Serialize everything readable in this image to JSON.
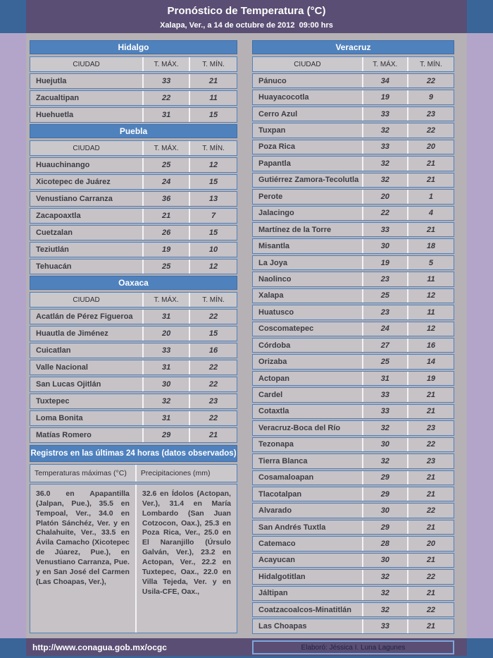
{
  "header": {
    "title": "Pronóstico de Temperatura (°C)",
    "subtitle": "Xalapa, Ver., a 14 de octubre de 2012  09:00 hrs"
  },
  "columns": {
    "ciudad": "CIUDAD",
    "tmax": "T. MÁX.",
    "tmin": "T. MÍN."
  },
  "states": [
    {
      "id": "hidalgo",
      "name": "Hidalgo",
      "rows": [
        [
          "Huejutla",
          33,
          21
        ],
        [
          "Zacualtipan",
          22,
          11
        ],
        [
          "Huehuetla",
          31,
          15
        ]
      ]
    },
    {
      "id": "puebla",
      "name": "Puebla",
      "rows": [
        [
          "Huauchinango",
          25,
          12
        ],
        [
          "Xicotepec de Juárez",
          24,
          15
        ],
        [
          "Venustiano Carranza",
          36,
          13
        ],
        [
          "Zacapoaxtla",
          21,
          7
        ],
        [
          "Cuetzalan",
          26,
          15
        ],
        [
          "Teziutlán",
          19,
          10
        ],
        [
          "Tehuacán",
          25,
          12
        ]
      ]
    },
    {
      "id": "oaxaca",
      "name": "Oaxaca",
      "rows": [
        [
          "Acatlán de Pérez Figueroa",
          31,
          22
        ],
        [
          "Huautla de Jiménez",
          20,
          15
        ],
        [
          "Cuicatlan",
          33,
          16
        ],
        [
          "Valle Nacional",
          31,
          22
        ],
        [
          "San Lucas Ojitlán",
          30,
          22
        ],
        [
          "Tuxtepec",
          32,
          23
        ],
        [
          "Loma Bonita",
          31,
          22
        ],
        [
          "Matías Romero",
          29,
          21
        ]
      ]
    },
    {
      "id": "veracruz",
      "name": "Veracruz",
      "rows": [
        [
          "Pánuco",
          34,
          22
        ],
        [
          "Huayacocotla",
          19,
          9
        ],
        [
          "Cerro Azul",
          33,
          23
        ],
        [
          "Tuxpan",
          32,
          22
        ],
        [
          "Poza Rica",
          33,
          20
        ],
        [
          "Papantla",
          32,
          21
        ],
        [
          "Gutiérrez Zamora-Tecolutla",
          32,
          21
        ],
        [
          "Perote",
          20,
          1
        ],
        [
          "Jalacingo",
          22,
          4
        ],
        [
          "Martínez de la Torre",
          33,
          21
        ],
        [
          "Misantla",
          30,
          18
        ],
        [
          "La Joya",
          19,
          5
        ],
        [
          "Naolinco",
          23,
          11
        ],
        [
          "Xalapa",
          25,
          12
        ],
        [
          "Huatusco",
          23,
          11
        ],
        [
          "Coscomatepec",
          24,
          12
        ],
        [
          "Córdoba",
          27,
          16
        ],
        [
          "Orizaba",
          25,
          14
        ],
        [
          "Actopan",
          31,
          19
        ],
        [
          "Cardel",
          33,
          21
        ],
        [
          "Cotaxtla",
          33,
          21
        ],
        [
          "Veracruz-Boca del Río",
          32,
          23
        ],
        [
          "Tezonapa",
          30,
          22
        ],
        [
          "Tierra Blanca",
          32,
          23
        ],
        [
          "Cosamaloapan",
          29,
          21
        ],
        [
          "Tlacotalpan",
          29,
          21
        ],
        [
          "Alvarado",
          30,
          22
        ],
        [
          "San Andrés Tuxtla",
          29,
          21
        ],
        [
          "Catemaco",
          28,
          20
        ],
        [
          "Acayucan",
          30,
          21
        ],
        [
          "Hidalgotitlan",
          32,
          22
        ],
        [
          "Jáltipan",
          32,
          21
        ],
        [
          "Coatzacoalcos-Minatitlán",
          32,
          22
        ],
        [
          "Las Choapas",
          33,
          21
        ]
      ]
    }
  ],
  "registros": {
    "title": "Registros en las últimas 24 horas (datos observados)",
    "col1_header": "Temperaturas máximas (°C)",
    "col2_header": "Precipitaciones (mm)",
    "col1_text": "36.0 en Apapantilla (Jalpan, Pue.), 35.5 en Tempoal, Ver., 34.0 en Platón Sánchéz, Ver. y en Chalahuite, Ver., 33.5 en Ávila Camacho (Xicotepec de Júarez, Pue.), en Venustiano Carranza, Pue. y en San José del Carmen (Las Choapas, Ver.),",
    "col2_text": "32.6 en Ídolos (Actopan, Ver.), 31.4 en María Lombardo (San Juan Cotzocon, Oax.), 25.3 en Poza Rica, Ver., 25.0 en El Naranjillo (Úrsulo Galván, Ver.), 23.2 en Actopan, Ver., 22.2 en Tuxtepec, Oax., 22.0 en Villa Tejeda, Ver. y en Usila-CFE, Oax.,"
  },
  "footer": {
    "url": "http://www.conagua.gob.mx/ocgc",
    "elaboro": "Elaboró: Jéssica I. Luna Lagunes"
  },
  "colors": {
    "header_purple": "#5a4e74",
    "corner_blue": "#3a6598",
    "lavender_side": "#b2a5c9",
    "body_gray": "#b5b1b5",
    "table_blue": "#4f81bd",
    "row_gray": "#c6c2c6"
  }
}
